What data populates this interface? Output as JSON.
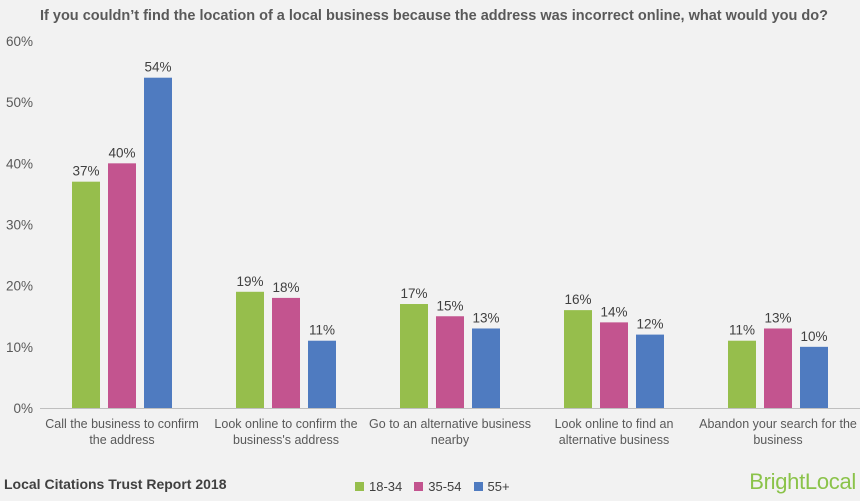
{
  "header": {
    "title": "If you couldn’t find the location of a local business because the address was incorrect online, what would you do?"
  },
  "footer": {
    "report_name": "Local Citations Trust Report 2018",
    "brand": "BrightLocal"
  },
  "colors": {
    "series_18_34": "#96be4c",
    "series_35_54": "#c3548f",
    "series_55_plus": "#4f7bc0"
  },
  "chart_data": {
    "type": "bar",
    "title": "If you couldn’t find the location of a local business because the address was incorrect online, what would you do?",
    "categories": [
      [
        "Call the business to confirm",
        "the address"
      ],
      [
        "Look online to confirm the",
        "business's address"
      ],
      [
        "Go to an alternative business",
        "nearby"
      ],
      [
        "Look online to find an",
        "alternative business"
      ],
      [
        "Abandon your search for the",
        "business"
      ]
    ],
    "series": [
      {
        "name": "18-34",
        "color": "#96be4c",
        "values": [
          37,
          19,
          17,
          16,
          11
        ]
      },
      {
        "name": "35-54",
        "color": "#c3548f",
        "values": [
          40,
          18,
          15,
          14,
          13
        ]
      },
      {
        "name": "55+",
        "color": "#4f7bc0",
        "values": [
          54,
          11,
          13,
          12,
          10
        ]
      }
    ],
    "yticks": [
      "0%",
      "10%",
      "20%",
      "30%",
      "40%",
      "50%",
      "60%"
    ],
    "ylim": [
      0,
      60
    ],
    "value_suffix": "%",
    "legend_position": "bottom",
    "grid": false
  }
}
